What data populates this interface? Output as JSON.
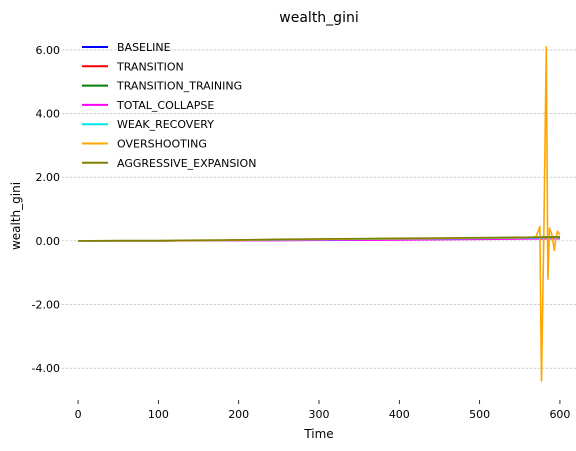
{
  "chart_data": {
    "type": "line",
    "title": "wealth_gini",
    "xlabel": "Time",
    "ylabel": "wealth_gini",
    "xlim": [
      -20,
      620
    ],
    "ylim": [
      -5.0,
      6.5
    ],
    "grid": "horizontal dashed",
    "legend_position": "top-left",
    "xticks": [
      0,
      100,
      200,
      300,
      400,
      500,
      600
    ],
    "xtick_labels": [
      "0",
      "100",
      "200",
      "300",
      "400",
      "500",
      "600"
    ],
    "yticks": [
      -4.0,
      -2.0,
      0.0,
      2.0,
      4.0,
      6.0
    ],
    "ytick_labels": [
      "-4.00",
      "-2.00",
      "0.00",
      "2.00",
      "4.00",
      "6.00"
    ],
    "series": [
      {
        "name": "BASELINE",
        "color": "#0000ff",
        "x": [
          0,
          50,
          100,
          150,
          200,
          250,
          300,
          350,
          400,
          450,
          500,
          550,
          600
        ],
        "y": [
          0.0,
          0.0,
          0.0,
          0.01,
          0.02,
          0.03,
          0.04,
          0.05,
          0.06,
          0.07,
          0.08,
          0.09,
          0.1
        ]
      },
      {
        "name": "TRANSITION",
        "color": "#ff0000",
        "x": [
          0,
          50,
          100,
          150,
          200,
          250,
          300,
          350,
          400,
          450,
          500,
          550,
          600
        ],
        "y": [
          0.0,
          0.0,
          0.0,
          0.01,
          0.02,
          0.03,
          0.04,
          0.05,
          0.06,
          0.07,
          0.08,
          0.1,
          0.12
        ]
      },
      {
        "name": "TRANSITION_TRAINING",
        "color": "#008000",
        "x": [
          0,
          50,
          100,
          150,
          200,
          250,
          300,
          350,
          400,
          450,
          500,
          550,
          600
        ],
        "y": [
          0.0,
          0.0,
          0.0,
          0.01,
          0.02,
          0.04,
          0.05,
          0.06,
          0.07,
          0.08,
          0.09,
          0.11,
          0.13
        ]
      },
      {
        "name": "TOTAL_COLLAPSE",
        "color": "#ff00ff",
        "x": [
          0,
          50,
          100,
          150,
          200,
          250,
          300,
          350,
          400,
          450,
          500,
          550,
          600
        ],
        "y": [
          0.0,
          0.0,
          0.0,
          0.0,
          0.01,
          0.01,
          0.02,
          0.02,
          0.03,
          0.04,
          0.05,
          0.06,
          0.07
        ]
      },
      {
        "name": "WEAK_RECOVERY",
        "color": "#00e5e5",
        "x": [
          0,
          50,
          100,
          150,
          200,
          250,
          300,
          350,
          400,
          450,
          500,
          550,
          600
        ],
        "y": [
          0.0,
          0.0,
          0.0,
          0.01,
          0.02,
          0.03,
          0.04,
          0.05,
          0.06,
          0.07,
          0.08,
          0.09,
          0.1
        ]
      },
      {
        "name": "OVERSHOOTING",
        "color": "#ffa500",
        "x": [
          0,
          50,
          100,
          150,
          200,
          250,
          300,
          350,
          400,
          450,
          500,
          550,
          570,
          575,
          577,
          580,
          583,
          585,
          587,
          590,
          593,
          595,
          597,
          600
        ],
        "y": [
          0.0,
          0.0,
          0.0,
          0.01,
          0.02,
          0.04,
          0.05,
          0.06,
          0.07,
          0.08,
          0.09,
          0.1,
          0.12,
          0.45,
          -4.4,
          0.3,
          6.1,
          -1.2,
          0.4,
          0.2,
          -0.3,
          0.1,
          0.3,
          0.2
        ]
      },
      {
        "name": "AGGRESSIVE_EXPANSION",
        "color": "#808000",
        "x": [
          0,
          50,
          100,
          150,
          200,
          250,
          300,
          350,
          400,
          450,
          500,
          550,
          600
        ],
        "y": [
          0.0,
          0.01,
          0.01,
          0.02,
          0.03,
          0.05,
          0.06,
          0.07,
          0.08,
          0.09,
          0.1,
          0.11,
          0.12
        ]
      }
    ]
  }
}
